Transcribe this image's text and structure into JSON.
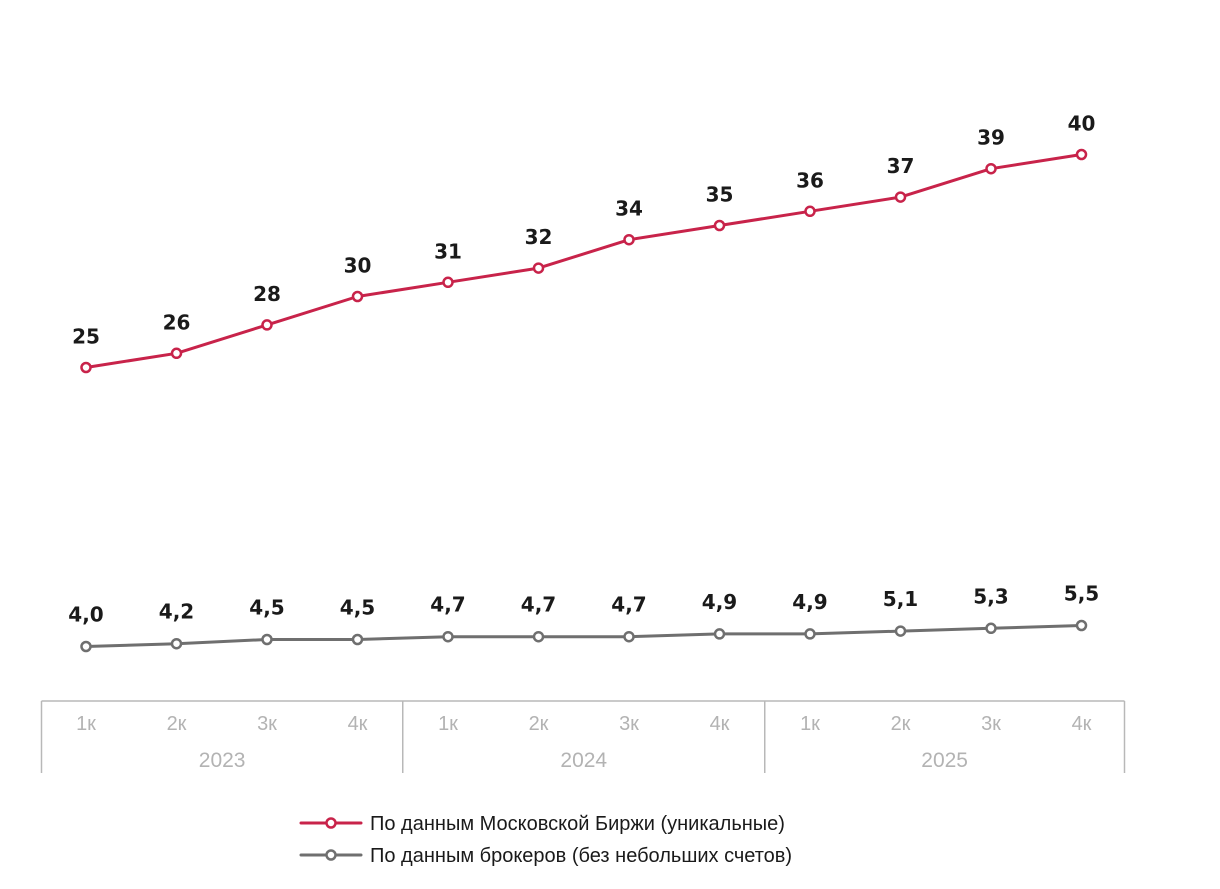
{
  "chart_data": {
    "type": "line",
    "categories": [
      "1к",
      "2к",
      "3к",
      "4к",
      "1к",
      "2к",
      "3к",
      "4к",
      "1к",
      "2к",
      "3к",
      "4к"
    ],
    "groups": [
      {
        "label": "2023",
        "span": 4
      },
      {
        "label": "2024",
        "span": 4
      },
      {
        "label": "2025",
        "span": 4
      }
    ],
    "series": [
      {
        "name": "По данным Московской Биржи (уникальные)",
        "color": "#c8234a",
        "values": [
          25,
          26,
          28,
          30,
          31,
          32,
          34,
          35,
          36,
          37,
          39,
          40
        ],
        "labels": [
          "25",
          "26",
          "28",
          "30",
          "31",
          "32",
          "34",
          "35",
          "36",
          "37",
          "39",
          "40"
        ]
      },
      {
        "name": "По данным брокеров (без небольших счетов)",
        "color": "#6f6f6f",
        "values": [
          4.0,
          4.2,
          4.5,
          4.5,
          4.7,
          4.7,
          4.7,
          4.9,
          4.9,
          5.1,
          5.3,
          5.5
        ],
        "labels": [
          "4,0",
          "4,2",
          "4,5",
          "4,5",
          "4,7",
          "4,7",
          "4,7",
          "4,9",
          "4,9",
          "5,1",
          "5,3",
          "5,5"
        ]
      }
    ],
    "grid": false,
    "legend_position": "bottom"
  }
}
